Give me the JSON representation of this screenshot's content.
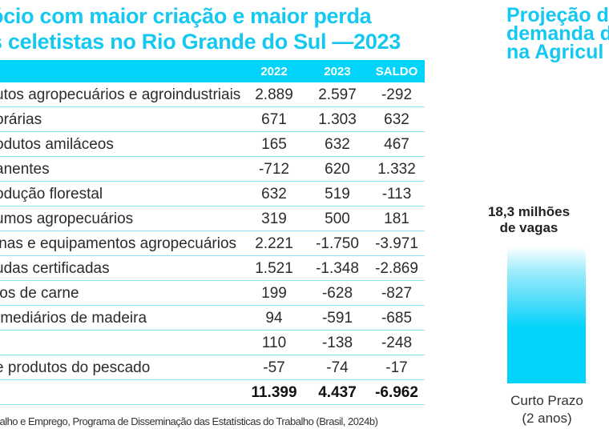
{
  "table_section": {
    "title_lines": [
      "ócio com maior criação e maior perda",
      "s celetistas no Rio Grande do Sul —2023"
    ],
    "columns": [
      "2022",
      "2023",
      "SALDO"
    ],
    "rows": [
      {
        "label": "utos agropecuários e agroindustriais",
        "y2022": "2.889",
        "y2023": "2.597",
        "saldo": "-292"
      },
      {
        "label": "orárias",
        "y2022": "671",
        "y2023": "1.303",
        "saldo": "632"
      },
      {
        "label": "odutos amiláceos",
        "y2022": "165",
        "y2023": "632",
        "saldo": "467"
      },
      {
        "label": "anentes",
        "y2022": "-712",
        "y2023": "620",
        "saldo": "1.332"
      },
      {
        "label": "odução florestal",
        "y2022": "632",
        "y2023": "519",
        "saldo": "-113"
      },
      {
        "label": "umos agropecuários",
        "y2022": "319",
        "y2023": "500",
        "saldo": "181"
      },
      {
        "label": "inas e equipamentos agropecuários",
        "y2022": "2.221",
        "y2023": "-1.750",
        "saldo": "-3.971"
      },
      {
        "label": "udas certificadas",
        "y2022": "1.521",
        "y2023": "-1.348",
        "saldo": "-2.869"
      },
      {
        "label": "tos de carne",
        "y2022": "199",
        "y2023": "-628",
        "saldo": "-827"
      },
      {
        "label": "rmediários de madeira",
        "y2022": "94",
        "y2023": "-591",
        "saldo": "-685"
      },
      {
        "label": "",
        "y2022": "110",
        "y2023": "-138",
        "saldo": "-248"
      },
      {
        "label": "e produtos do pescado",
        "y2022": "-57",
        "y2023": "-74",
        "saldo": "-17"
      }
    ],
    "total": {
      "label": "",
      "y2022": "11.399",
      "y2023": "4.437",
      "saldo": "-6.962"
    },
    "source": "abalho e Emprego, Programa de Disseminação das Estatísticas do Trabalho (Brasil, 2024b)"
  },
  "projection_section": {
    "title_lines": [
      "Projeção d",
      "demanda d",
      "na Agricul"
    ],
    "bar": {
      "value_label_lines": [
        "18,3 milhões",
        "de vagas"
      ],
      "category_lines": [
        "Curto Prazo",
        "(2 anos)"
      ],
      "value_millions": 18.3
    }
  },
  "colors": {
    "accent": "#00d4fa",
    "title": "#14c8f0",
    "row_divider": "#8ee4f5"
  }
}
